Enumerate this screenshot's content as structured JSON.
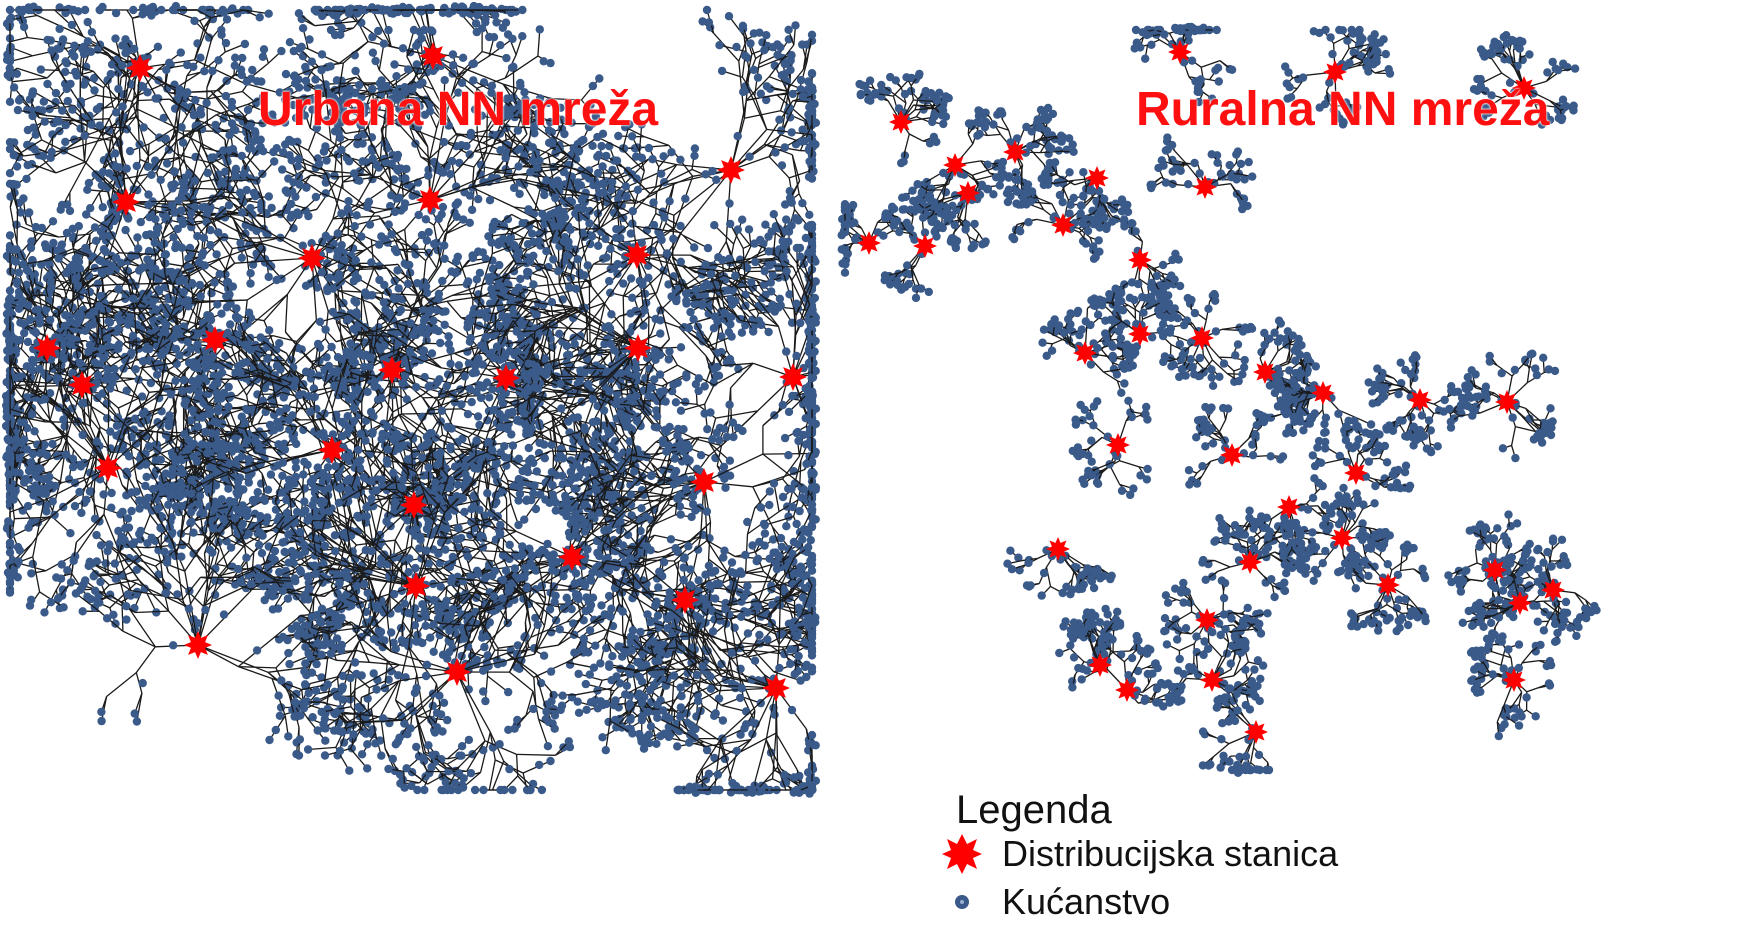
{
  "panels": [
    {
      "title": "Urbana NN mreža",
      "type": "urban"
    },
    {
      "title": "Ruralna NN mreža",
      "type": "rural"
    }
  ],
  "legend": {
    "title": "Legenda",
    "items": [
      {
        "label": "Distribucijska stanica",
        "icon": "red-star-icon",
        "color": "#ff0000"
      },
      {
        "label": "Kućanstvo",
        "icon": "blue-dot-icon",
        "color": "#3a5a8a"
      }
    ]
  },
  "colors": {
    "substation": "#ff0000",
    "household": "#3a5a8a",
    "line": "#1a1a1a",
    "title": "#ff1010"
  }
}
